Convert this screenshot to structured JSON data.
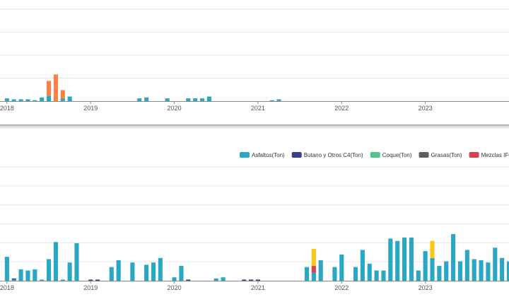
{
  "colors": {
    "asfaltos": "#2aa7c4",
    "butano": "#3b3f86",
    "coque": "#52c48a",
    "grasas": "#5f5f5f",
    "mezclas_ifo": "#d8404c",
    "orange": "#ff7f45",
    "yellow": "#ffc51a",
    "grid": "#e6e6e6",
    "axis": "#888888"
  },
  "chart_data": [
    {
      "type": "bar",
      "stacked": true,
      "x_tick_labels": [
        "2018",
        "2019",
        "2020",
        "2021",
        "2022",
        "2023"
      ],
      "x_ticks": [
        0,
        12,
        24,
        36,
        48,
        60
      ],
      "x_range": [
        -1,
        72
      ],
      "ylim": [
        0,
        100
      ],
      "grid": true,
      "series": [
        {
          "color_key": "asfaltos",
          "values": [
            3,
            2,
            2,
            2,
            1,
            4,
            6,
            0,
            3,
            5,
            0,
            0,
            0,
            0,
            0,
            0,
            0,
            0,
            0,
            3,
            4,
            0,
            0,
            3,
            0,
            0,
            3,
            3,
            3,
            5,
            0,
            0,
            0,
            0,
            0,
            0,
            0,
            0,
            1,
            2,
            0,
            0,
            0,
            0,
            0,
            0,
            0,
            0,
            0,
            0,
            0,
            0,
            0,
            0,
            0,
            0,
            0,
            0,
            0,
            0,
            0,
            0,
            0,
            0,
            0,
            0,
            0,
            0,
            0,
            0,
            0,
            0,
            0
          ]
        },
        {
          "color_key": "orange",
          "values": [
            0,
            0,
            0,
            0,
            0,
            0,
            16,
            29,
            9,
            0,
            0,
            0,
            0,
            0,
            0,
            0,
            0,
            0,
            0,
            0,
            0,
            0,
            0,
            0,
            0,
            0,
            0,
            0,
            0,
            0,
            0,
            0,
            0,
            0,
            0,
            0,
            0,
            0,
            0,
            0,
            0,
            0,
            0,
            0,
            0,
            0,
            0,
            0,
            0,
            0,
            0,
            0,
            0,
            0,
            0,
            0,
            0,
            0,
            0,
            0,
            0,
            0,
            0,
            0,
            0,
            0,
            0,
            0,
            0,
            0,
            0,
            0,
            0
          ]
        },
        {
          "color_key": "yellow",
          "values": [
            0,
            0,
            0,
            0,
            0,
            0,
            0,
            0,
            0,
            0,
            0,
            0,
            0,
            0,
            0,
            0,
            0,
            0,
            0,
            0,
            0,
            0,
            0,
            0,
            0,
            0,
            0,
            0,
            0,
            0,
            0,
            0,
            0,
            0,
            0,
            0,
            0,
            0,
            0,
            0,
            0,
            0,
            0,
            0,
            0,
            0,
            0,
            0,
            0,
            0,
            0,
            0,
            0,
            0,
            0,
            0,
            0,
            0,
            0,
            0,
            0,
            0,
            0,
            0,
            0,
            0,
            0,
            0,
            0,
            0,
            0,
            0,
            0
          ]
        }
      ]
    },
    {
      "type": "bar",
      "stacked": true,
      "legend_position": "top-right",
      "x_tick_labels": [
        "2018",
        "2019",
        "2020",
        "2021",
        "2022",
        "2023"
      ],
      "x_ticks": [
        0,
        12,
        24,
        36,
        48,
        60
      ],
      "x_range": [
        -1,
        72
      ],
      "ylim": [
        0,
        100
      ],
      "grid": true,
      "series": [
        {
          "name": "Asfaltos(Ton)",
          "color_key": "asfaltos",
          "values": [
            21,
            1,
            10,
            9,
            10,
            1,
            19,
            34,
            1,
            16,
            33,
            0,
            0,
            0,
            0,
            12,
            18,
            0,
            16,
            0,
            14,
            16,
            20,
            0,
            3,
            13,
            0,
            0,
            0,
            0,
            2,
            3,
            0,
            0,
            0,
            0,
            0,
            0,
            0,
            0,
            0,
            0,
            0,
            12,
            7,
            18,
            0,
            12,
            23,
            0,
            12,
            27,
            15,
            9,
            9,
            37,
            35,
            38,
            38,
            9,
            26,
            20,
            13,
            17,
            41,
            17,
            27,
            19,
            18,
            16,
            29,
            20,
            17
          ]
        },
        {
          "name": "Butano y Otros C4(Ton)",
          "color_key": "butano",
          "values": [
            0,
            1,
            0,
            0,
            0,
            0,
            0,
            0,
            0,
            0,
            0,
            0,
            1,
            1,
            0,
            0,
            0,
            0,
            0,
            0,
            0,
            0,
            0,
            0,
            0,
            0,
            1,
            0,
            0,
            0,
            0,
            0,
            0,
            0,
            1,
            1,
            1,
            0,
            0,
            0,
            0,
            0,
            0,
            0,
            0,
            0,
            0,
            0,
            0,
            0,
            0,
            0,
            0,
            0,
            0,
            0,
            0,
            0,
            0,
            0,
            0,
            0,
            0,
            0,
            0,
            0,
            0,
            0,
            0,
            0,
            0,
            0,
            0
          ]
        },
        {
          "name": "Coque(Ton)",
          "color_key": "coque",
          "values": [
            0,
            0,
            0,
            0,
            0,
            0,
            0,
            0,
            0,
            0,
            0,
            0,
            0,
            0,
            0,
            0,
            0,
            0,
            0,
            0,
            0,
            0,
            0,
            0,
            0,
            0,
            0,
            0,
            0,
            0,
            0,
            0,
            0,
            0,
            0,
            0,
            0,
            0,
            0,
            0,
            0,
            0,
            0,
            0,
            0,
            0,
            0,
            0,
            0,
            0,
            0,
            0,
            0,
            0,
            0,
            0,
            0,
            0,
            0,
            0,
            0,
            0,
            0,
            0,
            0,
            0,
            0,
            0,
            0,
            0,
            0,
            0,
            0
          ]
        },
        {
          "name": "Grasas(Ton)",
          "color_key": "grasas",
          "values": [
            0,
            0,
            0,
            0,
            0,
            0,
            0,
            0,
            0,
            0,
            0,
            0,
            0,
            0,
            0,
            0,
            0,
            0,
            0,
            0,
            0,
            0,
            0,
            0,
            0,
            0,
            0,
            0,
            0,
            0,
            0,
            0,
            0,
            0,
            0,
            0,
            0,
            0,
            0,
            0,
            0,
            0,
            0,
            0,
            0,
            0,
            0,
            0,
            0,
            0,
            0,
            0,
            0,
            0,
            0,
            0,
            0,
            0,
            0,
            0,
            0,
            0,
            0,
            0,
            0,
            0,
            0,
            0,
            0,
            0,
            0,
            0,
            0
          ]
        },
        {
          "name": "Mezclas IFO(Ton)",
          "color_key": "mezclas_ifo",
          "values": [
            0,
            0,
            0,
            0,
            0,
            0,
            0,
            0,
            0,
            0,
            0,
            0,
            0,
            0,
            0,
            0,
            0,
            0,
            0,
            0,
            0,
            0,
            0,
            0,
            0,
            0,
            0,
            0,
            0,
            0,
            0,
            0,
            0,
            0,
            0,
            0,
            0,
            0,
            0,
            0,
            0,
            0,
            0,
            0,
            6,
            0,
            0,
            0,
            0,
            0,
            0,
            0,
            0,
            0,
            0,
            0,
            0,
            0,
            0,
            0,
            0,
            0,
            0,
            0,
            0,
            0,
            0,
            0,
            0,
            0,
            0,
            0,
            0
          ]
        },
        {
          "color_key": "yellow",
          "values": [
            0,
            0,
            0,
            0,
            0,
            0,
            0,
            0,
            0,
            0,
            0,
            0,
            0,
            0,
            0,
            0,
            0,
            0,
            0,
            0,
            0,
            0,
            0,
            0,
            0,
            0,
            0,
            0,
            0,
            0,
            0,
            0,
            0,
            0,
            0,
            0,
            0,
            0,
            0,
            0,
            0,
            0,
            0,
            0,
            15,
            0,
            0,
            0,
            0,
            0,
            0,
            0,
            0,
            0,
            0,
            0,
            0,
            0,
            0,
            0,
            0,
            15,
            0,
            0,
            0,
            0,
            0,
            0,
            0,
            0,
            0,
            0,
            0
          ]
        }
      ]
    }
  ]
}
